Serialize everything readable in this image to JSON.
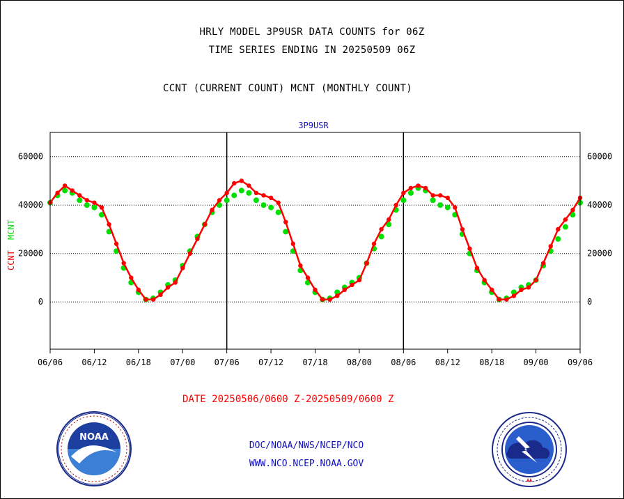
{
  "header": {
    "line1": "HRLY MODEL 3P9USR DATA COUNTS for 06Z",
    "line2": "TIME SERIES ENDING IN 20250509 06Z",
    "line3": "CCNT (CURRENT COUNT) MCNT (MONTHLY COUNT)"
  },
  "footer": {
    "date_range": "DATE 20250506/0600 Z-20250509/0600 Z",
    "org": "DOC/NOAA/NWS/NCEP/NCO",
    "url": "WWW.NCO.NCEP.NOAA.GOV"
  },
  "logos": {
    "left": "noaa-logo",
    "right": "nws-logo"
  },
  "colors": {
    "ccnt": "#ff0000",
    "mcnt": "#00e000",
    "panel_title": "#1010c0"
  },
  "chart_data": {
    "type": "line",
    "title": "3P9USR",
    "ylabel_ccnt": "CCNT",
    "ylabel_mcnt": "MCNT",
    "xlabel": "",
    "ylim": [
      -19500,
      70000
    ],
    "yticks": [
      "0",
      "20000",
      "40000",
      "60000"
    ],
    "ytick_values": [
      0,
      20000,
      40000,
      60000
    ],
    "xlim": [
      0,
      72
    ],
    "xticks": [
      "06/06",
      "06/12",
      "06/18",
      "07/00",
      "07/06",
      "07/12",
      "07/18",
      "08/00",
      "08/06",
      "08/12",
      "08/18",
      "09/00",
      "09/06"
    ],
    "xtick_values": [
      0,
      6,
      12,
      18,
      24,
      30,
      36,
      42,
      48,
      54,
      60,
      66,
      72
    ],
    "grid": true,
    "day_separators": [
      24,
      48
    ],
    "series": [
      {
        "name": "CCNT",
        "x": [
          0,
          1,
          2,
          3,
          4,
          5,
          6,
          7,
          8,
          9,
          10,
          11,
          12,
          13,
          14,
          15,
          16,
          17,
          18,
          19,
          20,
          21,
          22,
          23,
          24,
          25,
          26,
          27,
          28,
          29,
          30,
          31,
          32,
          33,
          34,
          35,
          36,
          37,
          38,
          39,
          40,
          41,
          42,
          43,
          44,
          45,
          46,
          47,
          48,
          49,
          50,
          51,
          52,
          53,
          54,
          55,
          56,
          57,
          58,
          59,
          60,
          61,
          62,
          63,
          64,
          65,
          66,
          67,
          68,
          69,
          70,
          71,
          72
        ],
        "values": [
          41000,
          45000,
          48000,
          46000,
          44000,
          42000,
          41000,
          39000,
          32000,
          24000,
          16000,
          10000,
          5000,
          1000,
          1000,
          3000,
          6000,
          8000,
          14000,
          20000,
          26000,
          32000,
          38000,
          42000,
          45000,
          49000,
          50000,
          48000,
          45000,
          44000,
          43000,
          41000,
          33000,
          24000,
          15000,
          10000,
          5000,
          1000,
          1000,
          2500,
          5000,
          7000,
          9000,
          16000,
          24000,
          30000,
          34000,
          40000,
          45000,
          47000,
          48000,
          47000,
          44000,
          44000,
          43000,
          39000,
          30000,
          22000,
          14000,
          9000,
          5000,
          1000,
          1000,
          2500,
          5000,
          6000,
          9000,
          16000,
          23000,
          30000,
          34000,
          38000,
          43000
        ]
      },
      {
        "name": "MCNT",
        "x": [
          0,
          1,
          2,
          3,
          4,
          5,
          6,
          7,
          8,
          9,
          10,
          11,
          12,
          13,
          14,
          15,
          16,
          17,
          18,
          19,
          20,
          21,
          22,
          23,
          24,
          25,
          26,
          27,
          28,
          29,
          30,
          31,
          32,
          33,
          34,
          35,
          36,
          37,
          38,
          39,
          40,
          41,
          42,
          43,
          44,
          45,
          46,
          47,
          48,
          49,
          50,
          51,
          52,
          53,
          54,
          55,
          56,
          57,
          58,
          59,
          60,
          61,
          62,
          63,
          64,
          65,
          66,
          67,
          68,
          69,
          70,
          71,
          72
        ],
        "values": [
          41000,
          44000,
          46000,
          45000,
          42000,
          40000,
          39000,
          36000,
          29000,
          21000,
          14000,
          8000,
          4000,
          1000,
          1500,
          4000,
          7000,
          9000,
          15000,
          21000,
          27000,
          32000,
          37000,
          40000,
          42000,
          44000,
          46000,
          45000,
          42000,
          40000,
          39000,
          37000,
          29000,
          21000,
          13000,
          8000,
          4000,
          1000,
          1500,
          4000,
          6000,
          8000,
          10000,
          16000,
          22000,
          27000,
          32000,
          38000,
          42000,
          45000,
          47000,
          46000,
          42000,
          40000,
          39000,
          36000,
          28000,
          20000,
          13000,
          8000,
          4000,
          1000,
          1500,
          4000,
          6000,
          7000,
          9000,
          15000,
          21000,
          26000,
          31000,
          36000,
          41000
        ]
      }
    ]
  }
}
